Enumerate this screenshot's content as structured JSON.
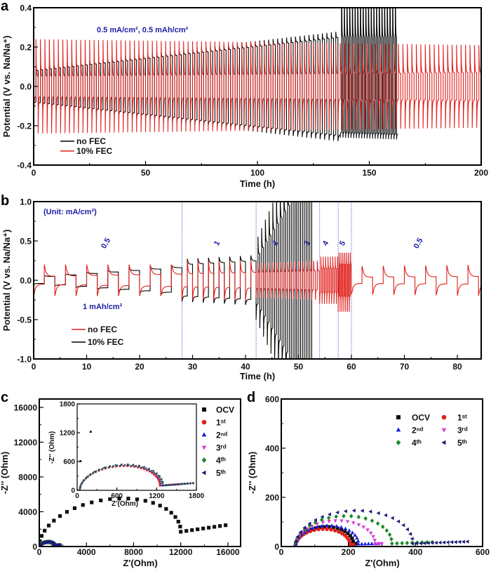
{
  "chart_data": [
    {
      "panel": "a",
      "type": "line",
      "title": "",
      "xlabel": "Time (h)",
      "ylabel": "Potential (V vs. Na/Na⁺)",
      "xlim": [
        0,
        200
      ],
      "ylim": [
        -0.4,
        0.4
      ],
      "xticks": [
        "0",
        "50",
        "100",
        "150",
        "200"
      ],
      "yticks": [
        "-0.4",
        "-0.2",
        "0.0",
        "0.2",
        "0.4"
      ],
      "annotations": [
        "0.5 mA/cm², 0.5 mAh/cm²"
      ],
      "legend": [
        {
          "label": "no FEC",
          "color": "#000000"
        },
        {
          "label": "10% FEC",
          "color": "#e0201c"
        }
      ],
      "series": [
        {
          "name": "no FEC",
          "color": "#000000",
          "segments": [
            {
              "t": [
                0,
                137
              ],
              "period": 2,
              "peak": [
                0.1,
                0.28
              ],
              "plateau": [
                0.08,
                0.25
              ]
            },
            {
              "t": [
                137,
                163
              ],
              "period": 1.2,
              "peak": [
                0.8,
                0.8
              ],
              "neg_peak": [
                0.26,
                0.27
              ],
              "plateau": [
                0.25,
                0.25
              ]
            }
          ]
        },
        {
          "name": "10% FEC",
          "color": "#e0201c",
          "start": -0.4,
          "segments": [
            {
              "t": [
                0,
                200
              ],
              "period": 2,
              "peak": [
                0.24,
                0.21
              ],
              "plateau": [
                0.05,
                0.07
              ]
            }
          ]
        }
      ]
    },
    {
      "panel": "b",
      "type": "line",
      "title": "",
      "xlabel": "Time (h)",
      "ylabel": "Potential (V vs. Na/Na⁺)",
      "xlim": [
        0,
        84.5
      ],
      "ylim": [
        -1.0,
        1.0
      ],
      "xticks": [
        "0",
        "10",
        "20",
        "30",
        "40",
        "50",
        "60",
        "70",
        "80"
      ],
      "yticks": [
        "-1.0",
        "-0.5",
        "0.0",
        "0.5",
        "1.0"
      ],
      "annotations": [
        "(Unit: mA/cm²)",
        "1 mAh/cm²"
      ],
      "rate_boundaries_h": [
        28,
        42,
        49.6,
        54,
        57.5,
        60
      ],
      "rate_labels": [
        {
          "label": "0.5",
          "t": 14
        },
        {
          "label": "1",
          "t": 35
        },
        {
          "label": "2",
          "t": 46
        },
        {
          "label": "3",
          "t": 52
        },
        {
          "label": "4",
          "t": 55.5
        },
        {
          "label": "5",
          "t": 58.7
        },
        {
          "label": "0.5",
          "t": 73
        }
      ],
      "legend": [
        {
          "label": "no FEC",
          "color": "#e0201c"
        },
        {
          "label": "10% FEC",
          "color": "#000000"
        }
      ],
      "series": [
        {
          "name": "10% FEC",
          "color": "#000000",
          "segments": [
            {
              "t": [
                0,
                28
              ],
              "period": 4,
              "peak": [
                0.05,
                0.2
              ],
              "plateau": [
                0.04,
                0.17
              ]
            },
            {
              "t": [
                28,
                42
              ],
              "period": 2,
              "peak": [
                0.27,
                0.32
              ],
              "plateau": [
                0.2,
                0.25
              ]
            },
            {
              "t": [
                42,
                53
              ],
              "period": 0.7,
              "peak": [
                0.5,
                2.2
              ],
              "plateau": [
                0.3,
                1.5
              ]
            }
          ]
        },
        {
          "name": "no FEC",
          "color": "#e0201c",
          "start": -0.35,
          "segments": [
            {
              "t": [
                0,
                28
              ],
              "period": 4,
              "peak": [
                0.2,
                0.2
              ],
              "plateau": [
                0.05,
                0.08
              ]
            },
            {
              "t": [
                28,
                42
              ],
              "period": 2,
              "peak": [
                0.25,
                0.25
              ],
              "plateau": [
                0.08,
                0.1
              ]
            },
            {
              "t": [
                42,
                54
              ],
              "period": 0.7,
              "peak": [
                0.22,
                0.25
              ],
              "plateau": [
                0.1,
                0.12
              ]
            },
            {
              "t": [
                54,
                57.5
              ],
              "period": 0.45,
              "peak": [
                0.3,
                0.3
              ],
              "plateau": [
                0.15,
                0.15
              ]
            },
            {
              "t": [
                57.5,
                60
              ],
              "period": 0.35,
              "peak": [
                0.35,
                0.35
              ],
              "neg_peak": [
                0.4,
                0.4
              ],
              "plateau": [
                0.2,
                0.2
              ]
            },
            {
              "t": [
                60,
                88
              ],
              "period": 4,
              "peak": [
                0.18,
                0.2
              ],
              "plateau": [
                0.04,
                0.05
              ]
            }
          ]
        }
      ]
    },
    {
      "panel": "c",
      "type": "scatter",
      "title": "",
      "xlabel": "Z'(Ohm)",
      "ylabel": "-Z'' (Ohm)",
      "xlim": [
        0,
        17075
      ],
      "ylim": [
        0,
        16960
      ],
      "xticks": [
        "0",
        "4000",
        "8000",
        "12000",
        "16000"
      ],
      "yticks": [
        "0",
        "4000",
        "8000",
        "12000",
        "16000"
      ],
      "inset": {
        "xlabel": "Z'(Ohm)",
        "ylabel": "-Z'' (Ohm)",
        "xlim": [
          0,
          1800
        ],
        "ylim": [
          0,
          1800
        ],
        "xticks": [
          "0",
          "600",
          "1200",
          "1800"
        ],
        "yticks": [
          "0",
          "600",
          "1200",
          "1800"
        ]
      },
      "legend": [
        "OCV",
        "1ˢᵗ",
        "2ⁿᵈ",
        "3ʳᵈ",
        "4ᵗʰ",
        "5ᵗʰ"
      ],
      "series": [
        {
          "name": "OCV",
          "color": "#111111",
          "marker": "square",
          "offset": 0,
          "diameter": 12000,
          "peak": 4600,
          "tail_end": 15800,
          "tail_level": [
            1700,
            2450
          ],
          "n": 24,
          "tail_n": 8
        },
        {
          "name": "1st",
          "color": "#e0201c",
          "marker": "circle",
          "offset": 40,
          "diameter": 1210,
          "peak": 455,
          "tail_end": 1750,
          "tail_level": [
            100,
            150
          ],
          "n": 34,
          "tail_n": 12
        },
        {
          "name": "2nd",
          "color": "#1a1ae0",
          "marker": "triangle-up",
          "offset": 40,
          "diameter": 1230,
          "peak": 465,
          "tail_end": 1750,
          "tail_level": [
            100,
            150
          ],
          "n": 34,
          "tail_n": 12
        },
        {
          "name": "3rd",
          "color": "#d83cd8",
          "marker": "triangle-down",
          "offset": 40,
          "diameter": 1240,
          "peak": 470,
          "tail_end": 1750,
          "tail_level": [
            100,
            150
          ],
          "n": 34,
          "tail_n": 12
        },
        {
          "name": "4th",
          "color": "#1d8a2a",
          "marker": "diamond",
          "offset": 40,
          "diameter": 1250,
          "peak": 475,
          "tail_end": 1750,
          "tail_level": [
            100,
            150
          ],
          "n": 34,
          "tail_n": 12
        },
        {
          "name": "5th",
          "color": "#1c1c7a",
          "marker": "triangle-left",
          "offset": 40,
          "diameter": 1260,
          "peak": 490,
          "tail_end": 1750,
          "tail_level": [
            100,
            150
          ],
          "n": 22,
          "tail_n": 10
        }
      ]
    },
    {
      "panel": "d",
      "type": "scatter",
      "title": "",
      "xlabel": "Z'(Ohm)",
      "ylabel": "-Z'' (Ohm)",
      "xlim": [
        0,
        600
      ],
      "ylim": [
        0,
        600
      ],
      "xticks": [
        "0",
        "200",
        "400",
        "600"
      ],
      "yticks": [
        "0",
        "200",
        "400",
        "600"
      ],
      "legend": [
        "OCV",
        "1ˢᵗ",
        "2ⁿᵈ",
        "3ʳᵈ",
        "4ᵗʰ",
        "5ᵗʰ"
      ],
      "series": [
        {
          "name": "OCV",
          "color": "#111111",
          "marker": "square",
          "offset": 42,
          "diameter": 173,
          "peak": 75,
          "tail_end": 222,
          "tail_level": [
            10,
            12
          ],
          "n": 20,
          "tail_n": 2
        },
        {
          "name": "1st",
          "color": "#e0201c",
          "marker": "circle",
          "offset": 42,
          "diameter": 163,
          "peak": 68,
          "tail_end": 215,
          "tail_level": [
            6,
            8
          ],
          "n": 20,
          "tail_n": 2
        },
        {
          "name": "2nd",
          "color": "#1a1ae0",
          "marker": "triangle-up",
          "offset": 42,
          "diameter": 188,
          "peak": 80,
          "tail_end": 290,
          "tail_level": [
            10,
            12
          ],
          "n": 20,
          "tail_n": 6
        },
        {
          "name": "3rd",
          "color": "#d83cd8",
          "marker": "triangle-down",
          "offset": 42,
          "diameter": 238,
          "peak": 100,
          "tail_end": 300,
          "tail_level": [
            10,
            12
          ],
          "n": 20,
          "tail_n": 3
        },
        {
          "name": "4th",
          "color": "#1d8a2a",
          "marker": "diamond",
          "offset": 42,
          "diameter": 288,
          "peak": 118,
          "tail_end": 450,
          "tail_level": [
            12,
            18
          ],
          "n": 20,
          "tail_n": 8
        },
        {
          "name": "5th",
          "color": "#1c1c7a",
          "marker": "triangle-left",
          "offset": 42,
          "diameter": 350,
          "peak": 140,
          "tail_end": 555,
          "tail_level": [
            12,
            20
          ],
          "n": 22,
          "tail_n": 14
        }
      ]
    }
  ],
  "figure": {
    "panel_labels": [
      "a",
      "b",
      "c",
      "d"
    ]
  }
}
